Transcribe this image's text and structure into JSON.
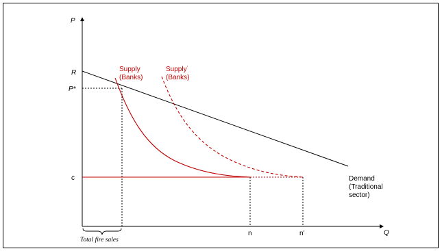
{
  "axes": {
    "y_label": "P",
    "x_label": "Q"
  },
  "y_ticks": {
    "r": "R",
    "p_star": "P*",
    "c": "c"
  },
  "x_ticks": {
    "n": "n",
    "n_prime": "n′"
  },
  "supply": {
    "line1": "Supply",
    "line2": "(Banks)"
  },
  "supply_prime": {
    "line1": "Supply",
    "prime": "'",
    "line2": "(Banks)"
  },
  "demand": {
    "line1": "Demand",
    "line2": "(Traditional",
    "line3": "sector)"
  },
  "brace_label": "Total fire sales",
  "colors": {
    "supply": "#c00000",
    "axes": "#000000"
  }
}
